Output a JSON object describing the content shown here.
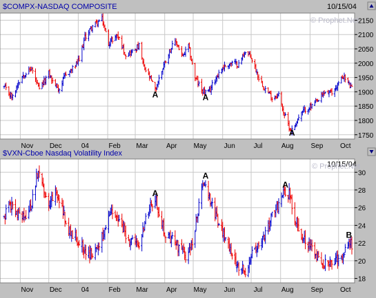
{
  "chart_data": [
    {
      "type": "ohlc",
      "title": "$COMPX-NASDAQ COMPOSITE",
      "date_label": "10/15/04",
      "watermark": "© Prophet.Net",
      "x_tick_labels": [
        "Nov",
        "Dec",
        "04",
        "Feb",
        "Mar",
        "Apr",
        "May",
        "Jun",
        "Jul",
        "Aug",
        "Sep",
        "Oct"
      ],
      "y_ticks": [
        1750,
        1800,
        1850,
        1900,
        1950,
        2000,
        2050,
        2100,
        2150
      ],
      "ylim": [
        1735,
        2175
      ],
      "annotations": [
        {
          "label": "A",
          "x": "2004-03-22",
          "y": 1890
        },
        {
          "label": "A",
          "x": "2004-05-14",
          "y": 1880
        },
        {
          "label": "A",
          "x": "2004-08-13",
          "y": 1757
        }
      ],
      "keypoints": [
        [
          "2003-10-15",
          1915
        ],
        [
          "2003-10-24",
          1880
        ],
        [
          "2003-10-30",
          1935
        ],
        [
          "2003-11-04",
          1960
        ],
        [
          "2003-11-13",
          1980
        ],
        [
          "2003-11-21",
          1905
        ],
        [
          "2003-12-01",
          1965
        ],
        [
          "2003-12-05",
          1935
        ],
        [
          "2003-12-12",
          1910
        ],
        [
          "2003-12-18",
          1955
        ],
        [
          "2003-12-26",
          1980
        ],
        [
          "2004-01-02",
          2010
        ],
        [
          "2004-01-08",
          2090
        ],
        [
          "2004-01-16",
          2130
        ],
        [
          "2004-01-26",
          2153
        ],
        [
          "2004-02-02",
          2070
        ],
        [
          "2004-02-11",
          2100
        ],
        [
          "2004-02-20",
          2030
        ],
        [
          "2004-02-27",
          2040
        ],
        [
          "2004-03-05",
          2060
        ],
        [
          "2004-03-10",
          1985
        ],
        [
          "2004-03-17",
          1945
        ],
        [
          "2004-03-22",
          1905
        ],
        [
          "2004-03-31",
          1995
        ],
        [
          "2004-04-07",
          2050
        ],
        [
          "2004-04-13",
          2075
        ],
        [
          "2004-04-20",
          2020
        ],
        [
          "2004-04-26",
          2060
        ],
        [
          "2004-05-03",
          1950
        ],
        [
          "2004-05-10",
          1905
        ],
        [
          "2004-05-17",
          1895
        ],
        [
          "2004-05-24",
          1945
        ],
        [
          "2004-06-01",
          1985
        ],
        [
          "2004-06-10",
          2000
        ],
        [
          "2004-06-18",
          1995
        ],
        [
          "2004-06-24",
          2040
        ],
        [
          "2004-07-01",
          2020
        ],
        [
          "2004-07-09",
          1950
        ],
        [
          "2004-07-16",
          1910
        ],
        [
          "2004-07-23",
          1880
        ],
        [
          "2004-07-30",
          1890
        ],
        [
          "2004-08-05",
          1820
        ],
        [
          "2004-08-12",
          1760
        ],
        [
          "2004-08-20",
          1810
        ],
        [
          "2004-08-27",
          1840
        ],
        [
          "2004-09-03",
          1850
        ],
        [
          "2004-09-10",
          1870
        ],
        [
          "2004-09-17",
          1900
        ],
        [
          "2004-09-24",
          1895
        ],
        [
          "2004-09-30",
          1925
        ],
        [
          "2004-10-06",
          1955
        ],
        [
          "2004-10-12",
          1925
        ],
        [
          "2004-10-15",
          1910
        ]
      ]
    },
    {
      "type": "ohlc",
      "title": "$VXN-Cboe Nasdaq Volatility Index",
      "date_label": "10/15/04",
      "watermark": "© Prophet.Net",
      "x_tick_labels": [
        "Nov",
        "Dec",
        "04",
        "Feb",
        "Mar",
        "Apr",
        "May",
        "Jun",
        "Jul",
        "Aug",
        "Sep",
        "Oct"
      ],
      "y_ticks": [
        18,
        20,
        22,
        24,
        26,
        28,
        30
      ],
      "ylim": [
        17.5,
        31.5
      ],
      "annotations": [
        {
          "label": "A",
          "x": "2004-03-22",
          "y": 27.6
        },
        {
          "label": "A",
          "x": "2004-05-14",
          "y": 29.6
        },
        {
          "label": "A",
          "x": "2004-08-06",
          "y": 28.6
        },
        {
          "label": "B",
          "x": "2004-10-12",
          "y": 22.9
        }
      ],
      "keypoints": [
        [
          "2003-10-15",
          25.0
        ],
        [
          "2003-10-20",
          26.5
        ],
        [
          "2003-10-28",
          25.2
        ],
        [
          "2003-11-04",
          24.8
        ],
        [
          "2003-11-10",
          25.5
        ],
        [
          "2003-11-14",
          27.0
        ],
        [
          "2003-11-18",
          29.5
        ],
        [
          "2003-11-21",
          30.5
        ],
        [
          "2003-11-25",
          28.0
        ],
        [
          "2003-12-01",
          26.5
        ],
        [
          "2003-12-08",
          27.5
        ],
        [
          "2003-12-15",
          26.0
        ],
        [
          "2003-12-22",
          23.5
        ],
        [
          "2003-12-31",
          22.5
        ],
        [
          "2004-01-06",
          21.5
        ],
        [
          "2004-01-13",
          20.5
        ],
        [
          "2004-01-21",
          21.5
        ],
        [
          "2004-01-30",
          23.5
        ],
        [
          "2004-02-05",
          25.5
        ],
        [
          "2004-02-12",
          24.5
        ],
        [
          "2004-02-20",
          23.0
        ],
        [
          "2004-02-27",
          22.0
        ],
        [
          "2004-03-05",
          21.5
        ],
        [
          "2004-03-11",
          24.5
        ],
        [
          "2004-03-17",
          26.0
        ],
        [
          "2004-03-22",
          27.0
        ],
        [
          "2004-03-26",
          25.5
        ],
        [
          "2004-04-01",
          23.0
        ],
        [
          "2004-04-08",
          22.5
        ],
        [
          "2004-04-16",
          21.5
        ],
        [
          "2004-04-23",
          20.5
        ],
        [
          "2004-04-30",
          22.0
        ],
        [
          "2004-05-05",
          25.0
        ],
        [
          "2004-05-10",
          28.0
        ],
        [
          "2004-05-14",
          29.0
        ],
        [
          "2004-05-19",
          27.0
        ],
        [
          "2004-05-26",
          24.5
        ],
        [
          "2004-06-02",
          23.0
        ],
        [
          "2004-06-10",
          21.0
        ],
        [
          "2004-06-17",
          19.5
        ],
        [
          "2004-06-25",
          19.0
        ],
        [
          "2004-07-01",
          20.5
        ],
        [
          "2004-07-09",
          21.5
        ],
        [
          "2004-07-16",
          23.0
        ],
        [
          "2004-07-23",
          25.0
        ],
        [
          "2004-07-30",
          26.5
        ],
        [
          "2004-08-05",
          28.0
        ],
        [
          "2004-08-10",
          27.5
        ],
        [
          "2004-08-16",
          25.0
        ],
        [
          "2004-08-23",
          23.0
        ],
        [
          "2004-08-30",
          22.0
        ],
        [
          "2004-09-06",
          21.0
        ],
        [
          "2004-09-13",
          20.0
        ],
        [
          "2004-09-20",
          19.5
        ],
        [
          "2004-09-27",
          19.8
        ],
        [
          "2004-10-04",
          20.5
        ],
        [
          "2004-10-08",
          21.5
        ],
        [
          "2004-10-12",
          22.5
        ],
        [
          "2004-10-15",
          21.8
        ]
      ]
    }
  ],
  "colors": {
    "background": "#c0c0c0",
    "plot_bg": "#ffffff",
    "up_bar": "#0000cc",
    "down_bar": "#ee0000",
    "grid": "#c8c8c8",
    "title_text": "#0000aa"
  }
}
